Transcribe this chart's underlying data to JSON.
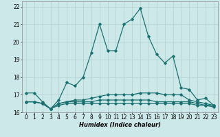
{
  "title": "",
  "xlabel": "Humidex (Indice chaleur)",
  "ylabel": "",
  "xlim": [
    -0.5,
    23.5
  ],
  "ylim": [
    16,
    22.3
  ],
  "xticks": [
    0,
    1,
    2,
    3,
    4,
    5,
    6,
    7,
    8,
    9,
    10,
    11,
    12,
    13,
    14,
    15,
    16,
    17,
    18,
    19,
    20,
    21,
    22,
    23
  ],
  "yticks": [
    16,
    17,
    18,
    19,
    20,
    21,
    22
  ],
  "background_color": "#cde8e8",
  "grid_color": "#b0d0d0",
  "line_color": "#1a7070",
  "lines": [
    {
      "x": [
        0,
        1,
        2,
        3,
        4,
        5,
        6,
        7,
        8,
        9,
        10,
        11,
        12,
        13,
        14,
        15,
        16,
        17,
        18,
        19,
        20,
        21,
        22,
        23
      ],
      "y": [
        17.1,
        17.1,
        16.6,
        16.2,
        16.7,
        17.7,
        17.5,
        18.0,
        19.4,
        21.0,
        19.5,
        19.5,
        21.0,
        21.3,
        21.9,
        20.3,
        19.3,
        18.8,
        19.2,
        17.4,
        17.3,
        16.7,
        16.8,
        16.4
      ]
    },
    {
      "x": [
        0,
        1,
        2,
        3,
        4,
        5,
        6,
        7,
        8,
        9,
        10,
        11,
        12,
        13,
        14,
        15,
        16,
        17,
        18,
        19,
        20,
        21,
        22,
        23
      ],
      "y": [
        16.6,
        16.6,
        16.5,
        16.2,
        16.5,
        16.6,
        16.7,
        16.7,
        16.8,
        16.9,
        17.0,
        17.0,
        17.0,
        17.0,
        17.1,
        17.1,
        17.1,
        17.0,
        17.0,
        17.0,
        16.7,
        16.6,
        16.5,
        16.4
      ]
    },
    {
      "x": [
        0,
        1,
        2,
        3,
        4,
        5,
        6,
        7,
        8,
        9,
        10,
        11,
        12,
        13,
        14,
        15,
        16,
        17,
        18,
        19,
        20,
        21,
        22,
        23
      ],
      "y": [
        16.6,
        16.6,
        16.5,
        16.2,
        16.5,
        16.6,
        16.6,
        16.6,
        16.6,
        16.7,
        16.7,
        16.7,
        16.7,
        16.7,
        16.7,
        16.7,
        16.6,
        16.6,
        16.6,
        16.6,
        16.6,
        16.5,
        16.4,
        16.4
      ]
    },
    {
      "x": [
        0,
        1,
        2,
        3,
        4,
        5,
        6,
        7,
        8,
        9,
        10,
        11,
        12,
        13,
        14,
        15,
        16,
        17,
        18,
        19,
        20,
        21,
        22,
        23
      ],
      "y": [
        16.6,
        16.6,
        16.5,
        16.2,
        16.4,
        16.5,
        16.5,
        16.5,
        16.5,
        16.5,
        16.5,
        16.5,
        16.5,
        16.5,
        16.5,
        16.5,
        16.5,
        16.5,
        16.5,
        16.5,
        16.5,
        16.4,
        16.4,
        16.3
      ]
    }
  ],
  "marker": "D",
  "markersize": 1.8,
  "linewidth": 0.9,
  "axis_fontsize": 6,
  "tick_fontsize": 5.5
}
